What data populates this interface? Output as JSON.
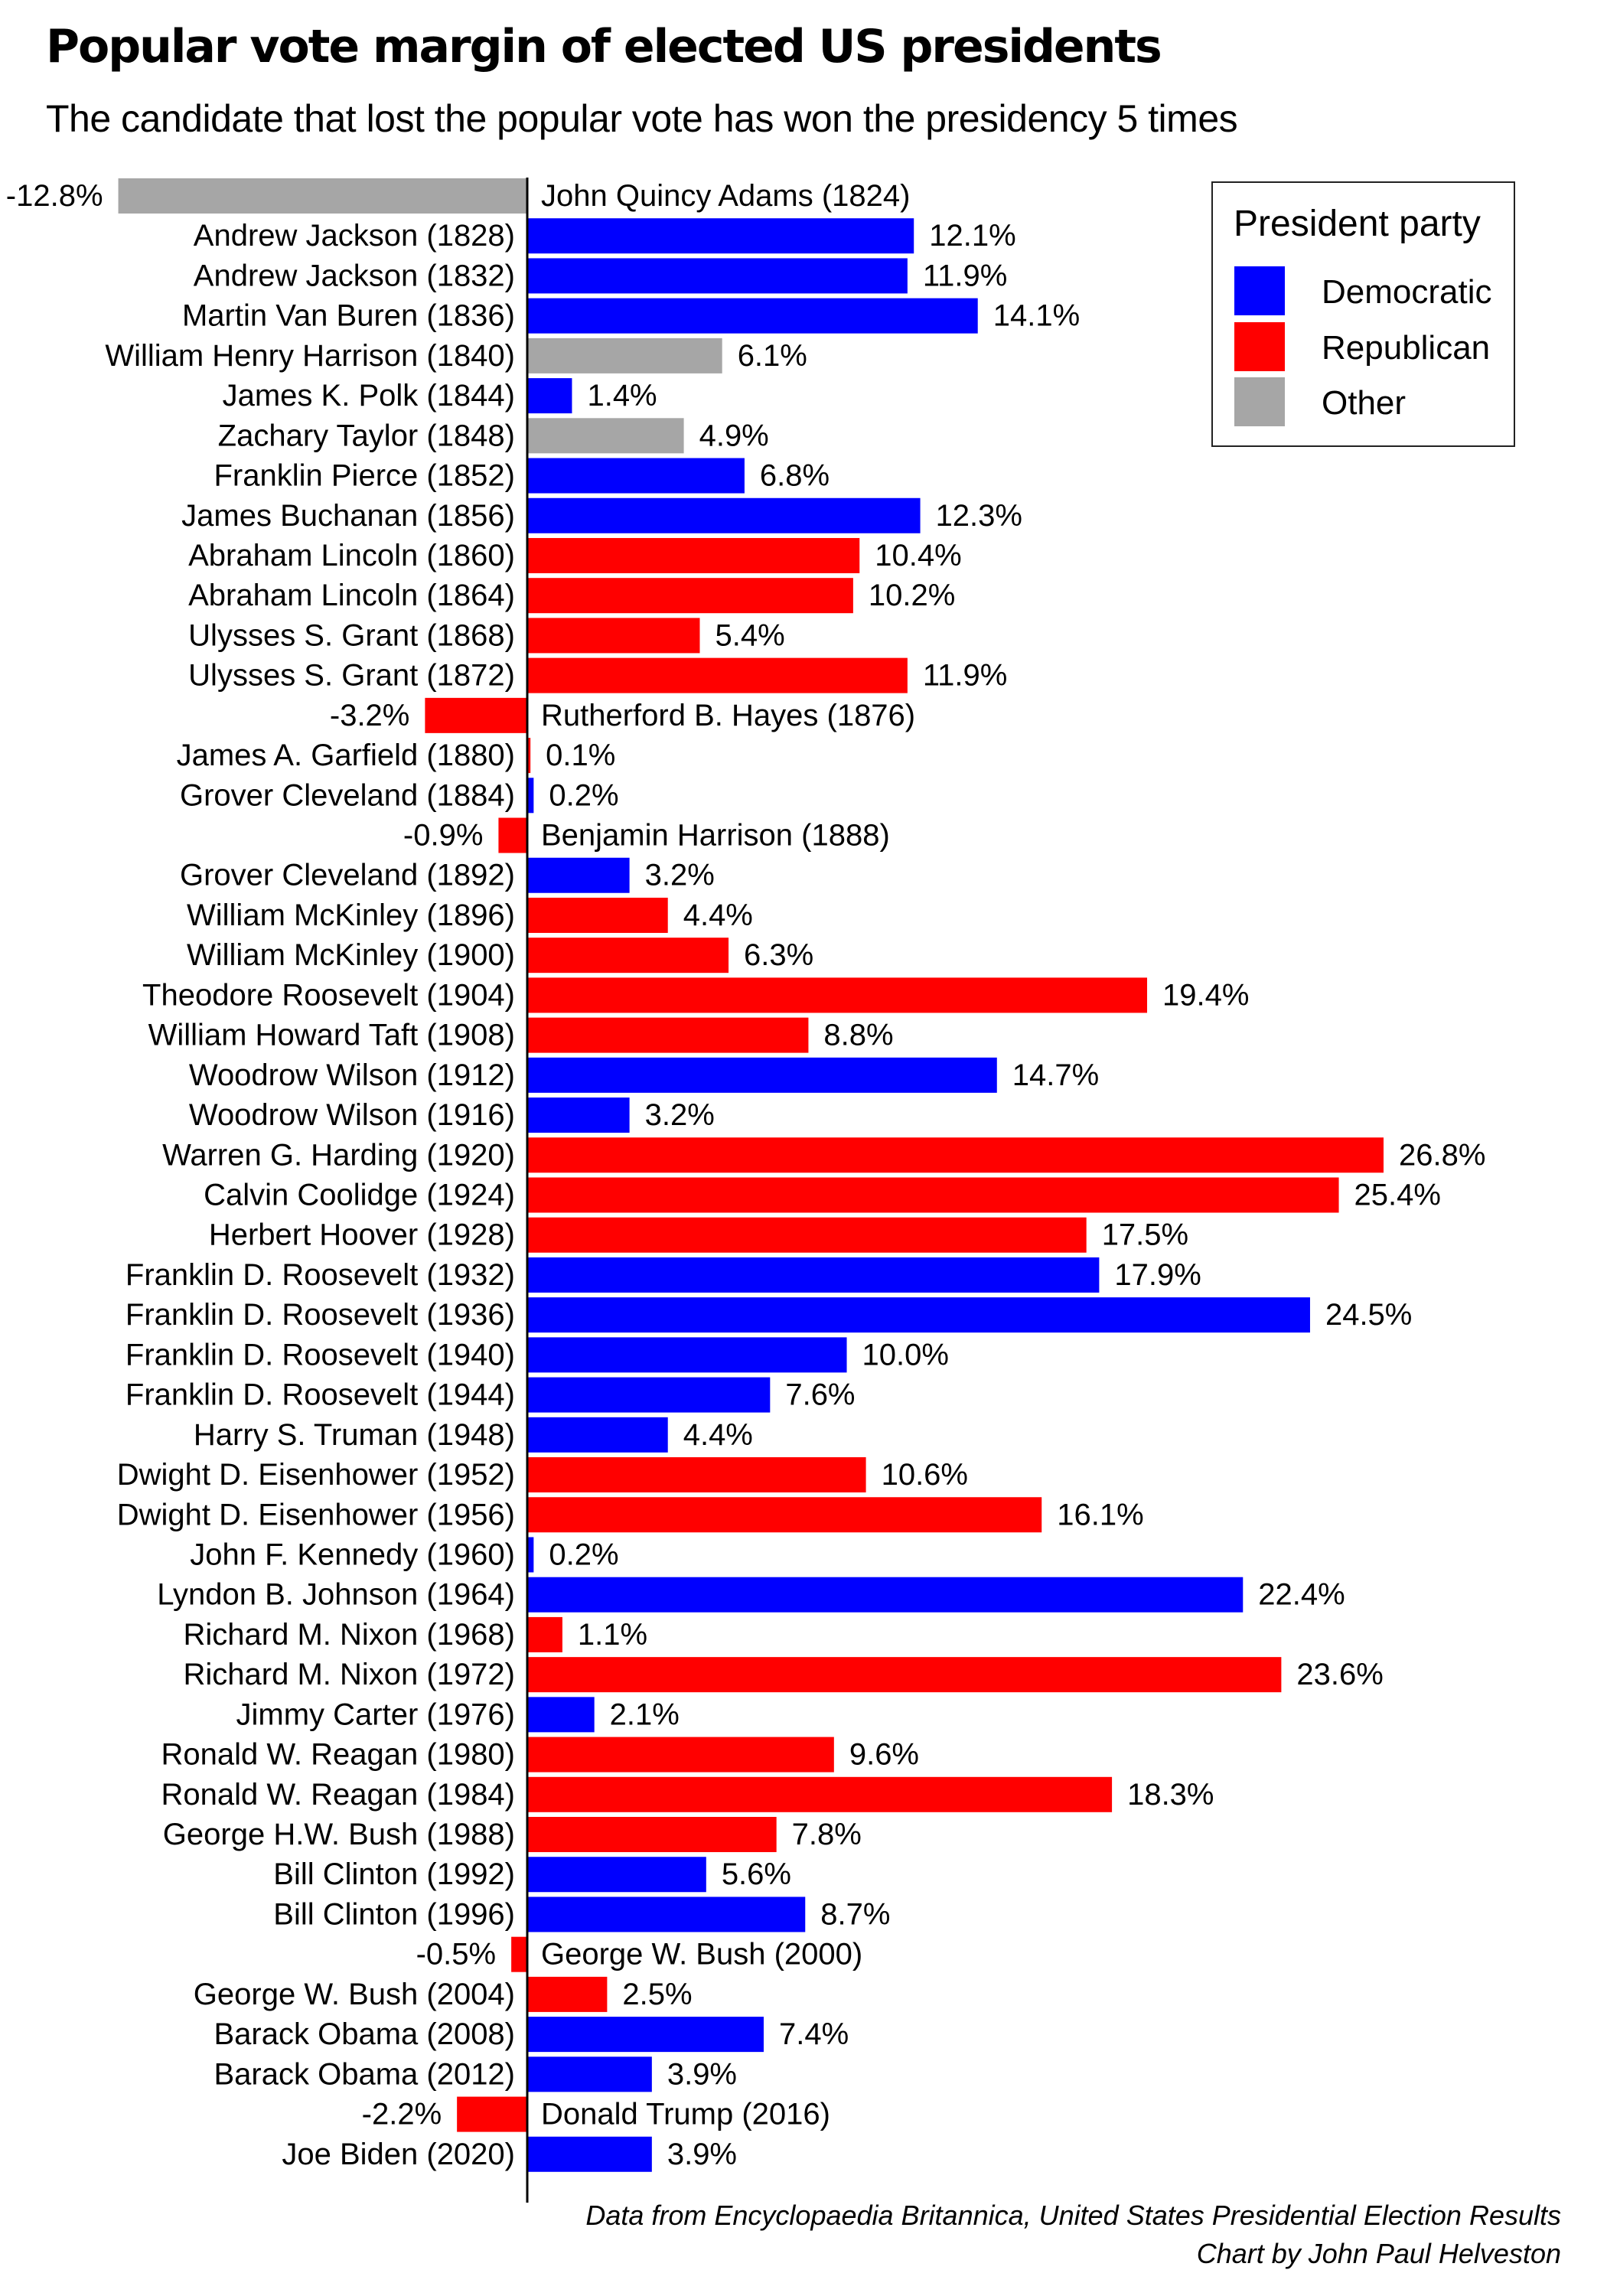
{
  "title": "Popular vote margin of elected US presidents",
  "subtitle": "The candidate that lost the popular vote has won the presidency 5 times",
  "legend": {
    "title": "President party",
    "items": [
      {
        "label": "Democratic",
        "color": "#0000ff"
      },
      {
        "label": "Republican",
        "color": "#ff0000"
      },
      {
        "label": "Other",
        "color": "#a6a6a6"
      }
    ]
  },
  "source": {
    "line1": "Data from Encyclopaedia Britannica, United States Presidential Election Results",
    "line2": "Chart by John Paul Helveston"
  },
  "chart_data": {
    "type": "bar",
    "orientation": "horizontal",
    "title": "Popular vote margin of elected US presidents",
    "subtitle": "The candidate that lost the popular vote has won the presidency 5 times",
    "xlim": [
      -12.8,
      26.8
    ],
    "unit": "%",
    "grid": false,
    "legend_position": "top-right",
    "party_colors": {
      "Democratic": "#0000ff",
      "Republican": "#ff0000",
      "Other": "#a6a6a6"
    },
    "bars": [
      {
        "label": "John Quincy Adams (1824)",
        "value": -12.8,
        "value_label": "-12.8%",
        "party": "Other"
      },
      {
        "label": "Andrew Jackson (1828)",
        "value": 12.1,
        "value_label": "12.1%",
        "party": "Democratic"
      },
      {
        "label": "Andrew Jackson (1832)",
        "value": 11.9,
        "value_label": "11.9%",
        "party": "Democratic"
      },
      {
        "label": "Martin Van Buren (1836)",
        "value": 14.1,
        "value_label": "14.1%",
        "party": "Democratic"
      },
      {
        "label": "William Henry Harrison (1840)",
        "value": 6.1,
        "value_label": "6.1%",
        "party": "Other"
      },
      {
        "label": "James K. Polk (1844)",
        "value": 1.4,
        "value_label": "1.4%",
        "party": "Democratic"
      },
      {
        "label": "Zachary Taylor (1848)",
        "value": 4.9,
        "value_label": "4.9%",
        "party": "Other"
      },
      {
        "label": "Franklin Pierce (1852)",
        "value": 6.8,
        "value_label": "6.8%",
        "party": "Democratic"
      },
      {
        "label": "James Buchanan (1856)",
        "value": 12.3,
        "value_label": "12.3%",
        "party": "Democratic"
      },
      {
        "label": "Abraham Lincoln (1860)",
        "value": 10.4,
        "value_label": "10.4%",
        "party": "Republican"
      },
      {
        "label": "Abraham Lincoln (1864)",
        "value": 10.2,
        "value_label": "10.2%",
        "party": "Republican"
      },
      {
        "label": "Ulysses S. Grant (1868)",
        "value": 5.4,
        "value_label": "5.4%",
        "party": "Republican"
      },
      {
        "label": "Ulysses S. Grant (1872)",
        "value": 11.9,
        "value_label": "11.9%",
        "party": "Republican"
      },
      {
        "label": "Rutherford B. Hayes (1876)",
        "value": -3.2,
        "value_label": "-3.2%",
        "party": "Republican"
      },
      {
        "label": "James A. Garfield (1880)",
        "value": 0.1,
        "value_label": "0.1%",
        "party": "Republican"
      },
      {
        "label": "Grover Cleveland (1884)",
        "value": 0.2,
        "value_label": "0.2%",
        "party": "Democratic"
      },
      {
        "label": "Benjamin Harrison (1888)",
        "value": -0.9,
        "value_label": "-0.9%",
        "party": "Republican"
      },
      {
        "label": "Grover Cleveland (1892)",
        "value": 3.2,
        "value_label": "3.2%",
        "party": "Democratic"
      },
      {
        "label": "William McKinley (1896)",
        "value": 4.4,
        "value_label": "4.4%",
        "party": "Republican"
      },
      {
        "label": "William McKinley (1900)",
        "value": 6.3,
        "value_label": "6.3%",
        "party": "Republican"
      },
      {
        "label": "Theodore Roosevelt (1904)",
        "value": 19.4,
        "value_label": "19.4%",
        "party": "Republican"
      },
      {
        "label": "William Howard Taft (1908)",
        "value": 8.8,
        "value_label": "8.8%",
        "party": "Republican"
      },
      {
        "label": "Woodrow Wilson (1912)",
        "value": 14.7,
        "value_label": "14.7%",
        "party": "Democratic"
      },
      {
        "label": "Woodrow Wilson (1916)",
        "value": 3.2,
        "value_label": "3.2%",
        "party": "Democratic"
      },
      {
        "label": "Warren G. Harding (1920)",
        "value": 26.8,
        "value_label": "26.8%",
        "party": "Republican"
      },
      {
        "label": "Calvin Coolidge (1924)",
        "value": 25.4,
        "value_label": "25.4%",
        "party": "Republican"
      },
      {
        "label": "Herbert Hoover (1928)",
        "value": 17.5,
        "value_label": "17.5%",
        "party": "Republican"
      },
      {
        "label": "Franklin D. Roosevelt (1932)",
        "value": 17.9,
        "value_label": "17.9%",
        "party": "Democratic"
      },
      {
        "label": "Franklin D. Roosevelt (1936)",
        "value": 24.5,
        "value_label": "24.5%",
        "party": "Democratic"
      },
      {
        "label": "Franklin D. Roosevelt (1940)",
        "value": 10.0,
        "value_label": "10.0%",
        "party": "Democratic"
      },
      {
        "label": "Franklin D. Roosevelt (1944)",
        "value": 7.6,
        "value_label": "7.6%",
        "party": "Democratic"
      },
      {
        "label": "Harry S. Truman (1948)",
        "value": 4.4,
        "value_label": "4.4%",
        "party": "Democratic"
      },
      {
        "label": "Dwight D. Eisenhower (1952)",
        "value": 10.6,
        "value_label": "10.6%",
        "party": "Republican"
      },
      {
        "label": "Dwight D. Eisenhower (1956)",
        "value": 16.1,
        "value_label": "16.1%",
        "party": "Republican"
      },
      {
        "label": "John F. Kennedy (1960)",
        "value": 0.2,
        "value_label": "0.2%",
        "party": "Democratic"
      },
      {
        "label": "Lyndon B. Johnson (1964)",
        "value": 22.4,
        "value_label": "22.4%",
        "party": "Democratic"
      },
      {
        "label": "Richard M. Nixon (1968)",
        "value": 1.1,
        "value_label": "1.1%",
        "party": "Republican"
      },
      {
        "label": "Richard M. Nixon (1972)",
        "value": 23.6,
        "value_label": "23.6%",
        "party": "Republican"
      },
      {
        "label": "Jimmy Carter (1976)",
        "value": 2.1,
        "value_label": "2.1%",
        "party": "Democratic"
      },
      {
        "label": "Ronald W. Reagan (1980)",
        "value": 9.6,
        "value_label": "9.6%",
        "party": "Republican"
      },
      {
        "label": "Ronald W. Reagan (1984)",
        "value": 18.3,
        "value_label": "18.3%",
        "party": "Republican"
      },
      {
        "label": "George H.W. Bush (1988)",
        "value": 7.8,
        "value_label": "7.8%",
        "party": "Republican"
      },
      {
        "label": "Bill Clinton (1992)",
        "value": 5.6,
        "value_label": "5.6%",
        "party": "Democratic"
      },
      {
        "label": "Bill Clinton (1996)",
        "value": 8.7,
        "value_label": "8.7%",
        "party": "Democratic"
      },
      {
        "label": "George W. Bush (2000)",
        "value": -0.5,
        "value_label": "-0.5%",
        "party": "Republican"
      },
      {
        "label": "George W. Bush (2004)",
        "value": 2.5,
        "value_label": "2.5%",
        "party": "Republican"
      },
      {
        "label": "Barack Obama (2008)",
        "value": 7.4,
        "value_label": "7.4%",
        "party": "Democratic"
      },
      {
        "label": "Barack Obama (2012)",
        "value": 3.9,
        "value_label": "3.9%",
        "party": "Democratic"
      },
      {
        "label": "Donald Trump (2016)",
        "value": -2.2,
        "value_label": "-2.2%",
        "party": "Republican"
      },
      {
        "label": "Joe Biden (2020)",
        "value": 3.9,
        "value_label": "3.9%",
        "party": "Democratic"
      }
    ]
  }
}
